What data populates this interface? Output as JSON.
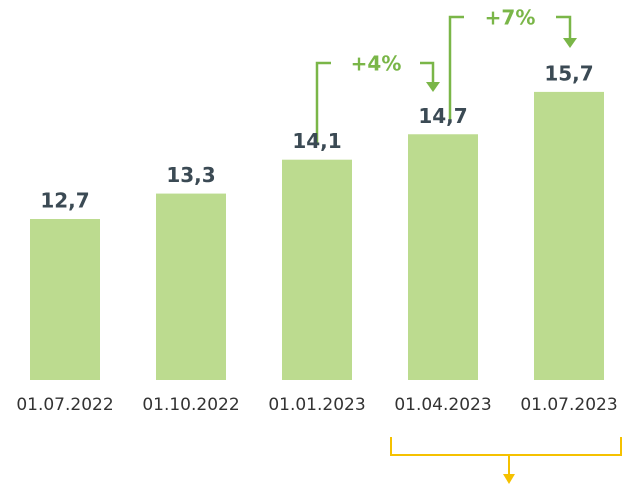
{
  "chart_data": {
    "type": "bar",
    "categories": [
      "01.07.2022",
      "01.10.2022",
      "01.01.2023",
      "01.04.2023",
      "01.07.2023"
    ],
    "values": [
      12.7,
      13.3,
      14.1,
      14.7,
      15.7
    ],
    "value_labels": [
      "12,7",
      "13,3",
      "14,1",
      "14,7",
      "15,7"
    ],
    "color": "#bcdb8f",
    "ylim": [
      8.9,
      16.5
    ],
    "annotations": [
      "+4%",
      "+7%"
    ]
  }
}
